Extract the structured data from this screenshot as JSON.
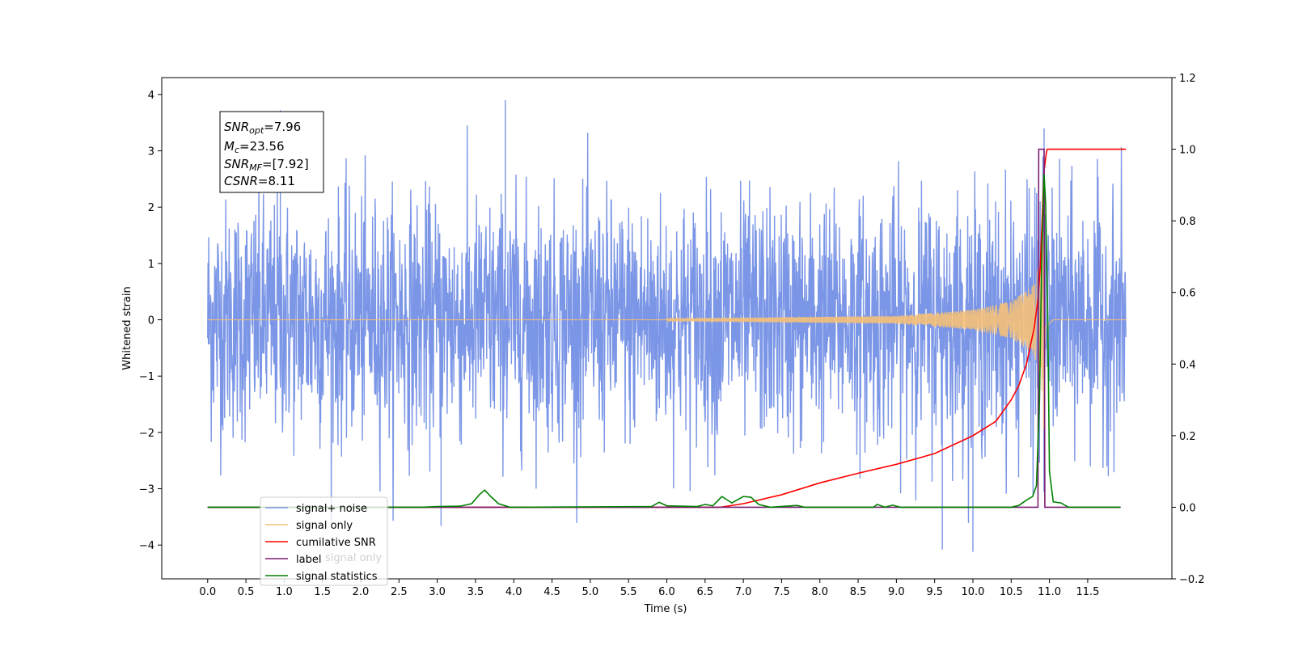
{
  "chart_data": {
    "type": "line",
    "xlabel": "Time (s)",
    "ylabel": "Whitened strain",
    "xlim": [
      -0.6,
      12.6
    ],
    "ylim": [
      -4.6,
      4.3
    ],
    "y2lim": [
      -0.2,
      1.2
    ],
    "x_ticks": [
      0.0,
      0.5,
      1.0,
      1.5,
      2.0,
      2.5,
      3.0,
      3.5,
      4.0,
      4.5,
      5.0,
      5.5,
      6.0,
      6.5,
      7.0,
      7.5,
      8.0,
      8.5,
      9.0,
      9.5,
      10.0,
      10.5,
      11.0,
      11.5
    ],
    "y_ticks": [
      4,
      3,
      2,
      1,
      0,
      -1,
      -2,
      -3,
      -4
    ],
    "y2_ticks": [
      1.2,
      1.0,
      0.8,
      0.6,
      0.4,
      0.2,
      0.0,
      -0.2
    ],
    "grid": false,
    "legend_position": "lower-left",
    "annotation": {
      "snr_opt": {
        "sym": "SNR",
        "sub": "opt",
        "val": "=7.96"
      },
      "mc": {
        "sym": "M",
        "sub": "c",
        "val": "=23.56"
      },
      "snr_mf": {
        "sym": "SNR",
        "sub": "MF",
        "val": "=[7.92]"
      },
      "csnr": {
        "sym": "CSNR",
        "sub": "",
        "val": "=8.11"
      }
    },
    "series": [
      {
        "name": "signal+ noise",
        "color": "#7b96e6",
        "axis": "left",
        "t_start": 0.0,
        "t_end": 12.0,
        "noise_sigma": 1.0,
        "peak_values": [
          [
            0.95,
            3.72
          ],
          [
            3.05,
            -3.66
          ],
          [
            3.89,
            3.9
          ],
          [
            9.6,
            -4.08
          ],
          [
            10.0,
            -4.12
          ],
          [
            10.93,
            3.4
          ]
        ]
      },
      {
        "name": "signal only",
        "color": "#f5c078",
        "axis": "left",
        "t_start": 0.0,
        "t_end": 12.0,
        "chirp_start": 6.0,
        "merger": 10.93,
        "amplitude_points": [
          [
            6.0,
            0.02
          ],
          [
            9.0,
            0.07
          ],
          [
            10.0,
            0.18
          ],
          [
            10.5,
            0.33
          ],
          [
            10.8,
            0.62
          ],
          [
            10.9,
            1.2
          ],
          [
            10.93,
            2.3
          ],
          [
            10.95,
            0.3
          ],
          [
            11.05,
            0.0
          ]
        ]
      },
      {
        "name": "cumilative SNR",
        "color": "#ff0000",
        "axis": "right",
        "points": [
          [
            0.0,
            0.0
          ],
          [
            6.7,
            0.0
          ],
          [
            7.0,
            0.01
          ],
          [
            7.5,
            0.035
          ],
          [
            8.0,
            0.068
          ],
          [
            8.5,
            0.095
          ],
          [
            9.0,
            0.12
          ],
          [
            9.5,
            0.15
          ],
          [
            10.0,
            0.2
          ],
          [
            10.3,
            0.24
          ],
          [
            10.5,
            0.3
          ],
          [
            10.6,
            0.34
          ],
          [
            10.7,
            0.4
          ],
          [
            10.8,
            0.5
          ],
          [
            10.85,
            0.58
          ],
          [
            10.88,
            0.67
          ],
          [
            10.9,
            0.78
          ],
          [
            10.93,
            0.94
          ],
          [
            10.96,
            0.99
          ],
          [
            10.97,
            1.0
          ],
          [
            12.0,
            1.0
          ]
        ]
      },
      {
        "name": "label",
        "color": "#7b1f72",
        "axis": "right",
        "points": [
          [
            0.0,
            0.0
          ],
          [
            10.85,
            0.0
          ],
          [
            10.86,
            1.0
          ],
          [
            10.93,
            1.0
          ],
          [
            10.94,
            0.0
          ],
          [
            11.93,
            0.0
          ]
        ]
      },
      {
        "name": "signal statistics",
        "color": "#008000",
        "axis": "right",
        "points": [
          [
            0.0,
            0.0
          ],
          [
            2.8,
            0.0
          ],
          [
            3.0,
            0.002
          ],
          [
            3.3,
            0.003
          ],
          [
            3.45,
            0.01
          ],
          [
            3.55,
            0.035
          ],
          [
            3.62,
            0.048
          ],
          [
            3.7,
            0.03
          ],
          [
            3.8,
            0.01
          ],
          [
            3.95,
            0.0
          ],
          [
            5.8,
            0.002
          ],
          [
            5.9,
            0.014
          ],
          [
            6.0,
            0.004
          ],
          [
            6.4,
            0.002
          ],
          [
            6.5,
            0.008
          ],
          [
            6.6,
            0.004
          ],
          [
            6.72,
            0.03
          ],
          [
            6.85,
            0.012
          ],
          [
            7.0,
            0.03
          ],
          [
            7.1,
            0.028
          ],
          [
            7.2,
            0.008
          ],
          [
            7.35,
            0.0
          ],
          [
            7.7,
            0.005
          ],
          [
            7.8,
            0.0
          ],
          [
            8.7,
            0.0
          ],
          [
            8.75,
            0.008
          ],
          [
            8.85,
            0.0
          ],
          [
            8.95,
            0.006
          ],
          [
            9.05,
            0.0
          ],
          [
            10.5,
            0.0
          ],
          [
            10.6,
            0.005
          ],
          [
            10.7,
            0.02
          ],
          [
            10.78,
            0.03
          ],
          [
            10.83,
            0.06
          ],
          [
            10.87,
            0.3
          ],
          [
            10.9,
            0.7
          ],
          [
            10.93,
            0.93
          ],
          [
            10.95,
            0.85
          ],
          [
            10.98,
            0.5
          ],
          [
            11.0,
            0.1
          ],
          [
            11.05,
            0.015
          ],
          [
            11.15,
            0.012
          ],
          [
            11.25,
            0.0
          ],
          [
            11.93,
            0.0
          ]
        ]
      }
    ],
    "legend_entries": [
      {
        "label": "signal+ noise",
        "color": "#7b96e6"
      },
      {
        "label": "signal only",
        "color": "#f5c078"
      },
      {
        "label": "cumilative SNR",
        "color": "#ff0000"
      },
      {
        "label": "label",
        "color": "#7b1f72"
      },
      {
        "label": "signal statistics",
        "color": "#008000"
      }
    ],
    "legend_ghost_text": "signal only"
  }
}
